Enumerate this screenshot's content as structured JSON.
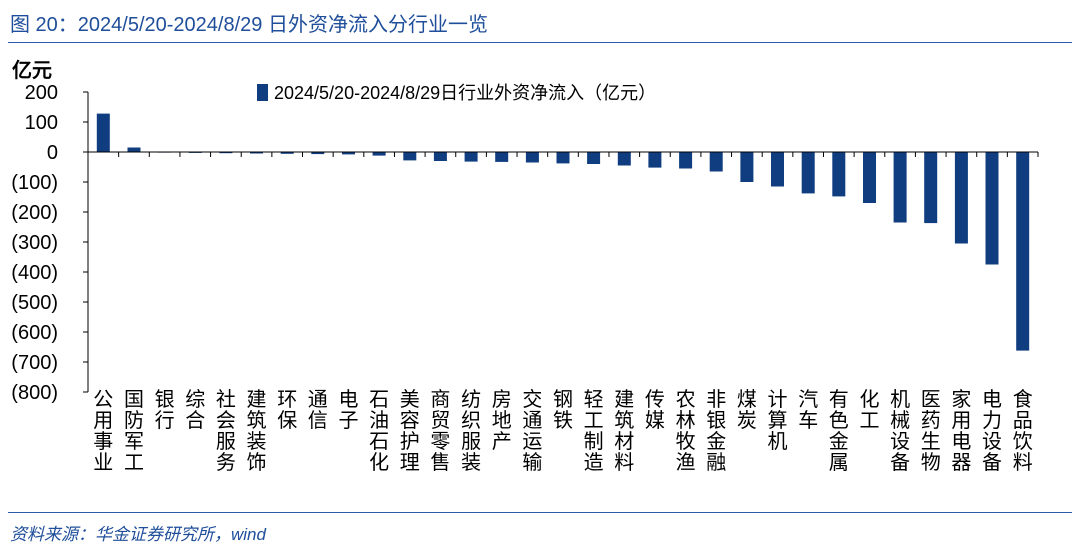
{
  "figure": {
    "title": "图 20：2024/5/20-2024/8/29 日外资净流入分行业一览",
    "source": "资料来源：华金证券研究所，wind"
  },
  "colors": {
    "bar": "#0f3d7f",
    "accent": "#1f4e9a"
  },
  "chart_data": {
    "type": "bar",
    "ylabel": "亿元",
    "ylim": [
      -800,
      200
    ],
    "yticks": [
      200,
      100,
      0,
      -100,
      -200,
      -300,
      -400,
      -500,
      -600,
      -700,
      -800
    ],
    "ytick_labels": [
      "200",
      "100",
      "0",
      "(100)",
      "(200)",
      "(300)",
      "(400)",
      "(500)",
      "(600)",
      "(700)",
      "(800)"
    ],
    "legend_position": "top",
    "grid": false,
    "categories": [
      "公用事业",
      "国防军工",
      "银行",
      "综合",
      "社会服务",
      "建筑装饰",
      "环保",
      "通信",
      "电子",
      "石油石化",
      "美容护理",
      "商贸零售",
      "纺织服装",
      "房地产",
      "交通运输",
      "钢铁",
      "轻工制造",
      "建筑材料",
      "传媒",
      "农林牧渔",
      "非银金融",
      "煤炭",
      "计算机",
      "汽车",
      "有色金属",
      "化工",
      "机械设备",
      "医药生物",
      "家用电器",
      "电力设备",
      "食品饮料"
    ],
    "series": [
      {
        "name": "2024/5/20-2024/8/29日行业外资净流入（亿元）",
        "values": [
          128,
          15,
          -2,
          -3,
          -4,
          -5,
          -6,
          -7,
          -8,
          -12,
          -28,
          -30,
          -32,
          -33,
          -35,
          -38,
          -40,
          -45,
          -52,
          -55,
          -65,
          -100,
          -115,
          -138,
          -148,
          -170,
          -235,
          -237,
          -305,
          -375,
          -662
        ]
      }
    ]
  }
}
